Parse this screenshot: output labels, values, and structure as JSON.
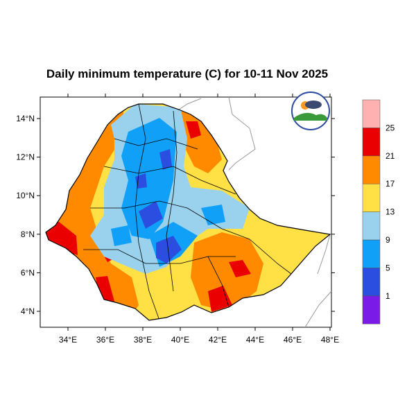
{
  "title": "Daily minimum temperature (C) for 10-11 Nov 2025",
  "map": {
    "region": "Ethiopia",
    "lon_ticks": [
      "34°E",
      "36°E",
      "38°E",
      "40°E",
      "42°E",
      "44°E",
      "46°E",
      "48°E"
    ],
    "lat_ticks": [
      "14°N",
      "12°N",
      "10°N",
      "8°N",
      "6°N",
      "4°N"
    ],
    "lon_range": [
      32.5,
      48.1
    ],
    "lat_range": [
      3.2,
      15.1
    ]
  },
  "colorbar": {
    "levels": [
      "1",
      "5",
      "9",
      "13",
      "17",
      "21",
      "25"
    ],
    "colors": [
      "#7a1be8",
      "#2b4ee0",
      "#10a0f8",
      "#9ad2ee",
      "#ffe045",
      "#ff8a00",
      "#ea0000",
      "#ffb0b0"
    ]
  },
  "logo": {
    "name": "Ethiopian Meteorological Institute logo"
  }
}
